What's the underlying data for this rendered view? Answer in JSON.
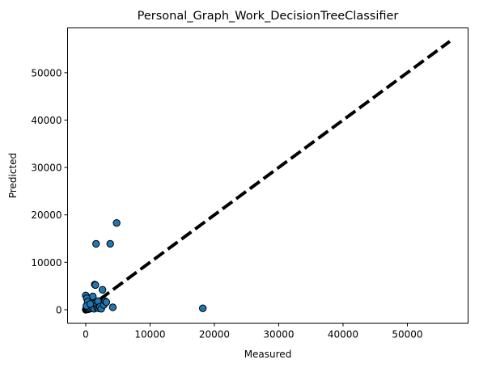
{
  "chart_data": {
    "type": "scatter",
    "title": "Personal_Graph_Work_DecisionTreeClassifier",
    "xlabel": "Measured",
    "ylabel": "Predicted",
    "xlim": [
      -2830,
      59440
    ],
    "ylim": [
      -2830,
      59440
    ],
    "xticks": [
      0,
      10000,
      20000,
      30000,
      40000,
      50000
    ],
    "yticks": [
      0,
      10000,
      20000,
      30000,
      40000,
      50000
    ],
    "grid": false,
    "point_color": "#1f77b4",
    "point_edge_color": "#000000",
    "reference_line": {
      "x": [
        0,
        56600
      ],
      "y": [
        0,
        56600
      ],
      "style": "dashed",
      "color": "#000000"
    },
    "points": [
      [
        0,
        0
      ],
      [
        50,
        100
      ],
      [
        100,
        300
      ],
      [
        150,
        50
      ],
      [
        200,
        500
      ],
      [
        250,
        150
      ],
      [
        300,
        800
      ],
      [
        350,
        250
      ],
      [
        400,
        600
      ],
      [
        450,
        100
      ],
      [
        500,
        1000
      ],
      [
        550,
        400
      ],
      [
        600,
        200
      ],
      [
        700,
        700
      ],
      [
        800,
        300
      ],
      [
        900,
        1500
      ],
      [
        1000,
        500
      ],
      [
        1100,
        2800
      ],
      [
        1200,
        1200
      ],
      [
        1300,
        200
      ],
      [
        1400,
        5300
      ],
      [
        1500,
        5200
      ],
      [
        1600,
        13900
      ],
      [
        1700,
        900
      ],
      [
        1800,
        400
      ],
      [
        1900,
        1800
      ],
      [
        2000,
        300
      ],
      [
        2200,
        600
      ],
      [
        2400,
        200
      ],
      [
        2600,
        4200
      ],
      [
        2800,
        1000
      ],
      [
        3000,
        1800
      ],
      [
        3200,
        1600
      ],
      [
        3800,
        13900
      ],
      [
        4200,
        500
      ],
      [
        4800,
        18300
      ],
      [
        0,
        3000
      ],
      [
        150,
        2400
      ],
      [
        300,
        1700
      ],
      [
        18200,
        300
      ],
      [
        100,
        800
      ],
      [
        700,
        1200
      ]
    ]
  }
}
